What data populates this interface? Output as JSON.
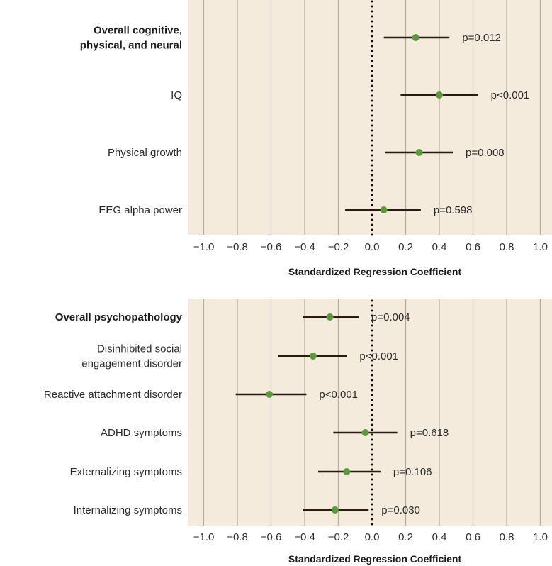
{
  "colors": {
    "plot_background": "#f5ebdc",
    "grid": "#b3aca2",
    "ci_line": "#2a1a14",
    "point": "#5a9a3c",
    "zero_line": "#111111"
  },
  "chart_data": [
    {
      "type": "forest",
      "xlabel": "Standardized Regression Coefficient",
      "xlim": [
        -1.1,
        1.08
      ],
      "xticks": [
        "−1.0",
        "−0.8",
        "−0.6",
        "−0.4",
        "−0.2",
        "0.0",
        "0.2",
        "0.4",
        "0.6",
        "0.8",
        "1.0"
      ],
      "grid": true,
      "reference_line": 0,
      "rows": [
        {
          "label": "Overall cognitive, physical, and neural",
          "label_lines": [
            "Overall cognitive,",
            "physical, and neural"
          ],
          "bold": true,
          "estimate": 0.26,
          "ci_low": 0.07,
          "ci_high": 0.46,
          "p": "p=0.012"
        },
        {
          "label": "IQ",
          "label_lines": [
            "IQ"
          ],
          "bold": false,
          "estimate": 0.4,
          "ci_low": 0.17,
          "ci_high": 0.63,
          "p": "p<0.001"
        },
        {
          "label": "Physical growth",
          "label_lines": [
            "Physical growth"
          ],
          "bold": false,
          "estimate": 0.28,
          "ci_low": 0.08,
          "ci_high": 0.48,
          "p": "p=0.008"
        },
        {
          "label": "EEG alpha power",
          "label_lines": [
            "EEG alpha power"
          ],
          "bold": false,
          "estimate": 0.07,
          "ci_low": -0.16,
          "ci_high": 0.29,
          "p": "p=0.598"
        }
      ]
    },
    {
      "type": "forest",
      "xlabel": "Standardized Regression Coefficient",
      "xlim": [
        -1.1,
        1.08
      ],
      "xticks": [
        "−1.0",
        "−0.8",
        "−0.6",
        "−0.4",
        "−0.2",
        "0.0",
        "0.2",
        "0.4",
        "0.6",
        "0.8",
        "1.0"
      ],
      "grid": true,
      "reference_line": 0,
      "rows": [
        {
          "label": "Overall psychopathology",
          "label_lines": [
            "Overall psychopathology"
          ],
          "bold": true,
          "estimate": -0.25,
          "ci_low": -0.41,
          "ci_high": -0.08,
          "p": "p=0.004"
        },
        {
          "label": "Disinhibited social engagement disorder",
          "label_lines": [
            "Disinhibited social",
            "engagement disorder"
          ],
          "bold": false,
          "estimate": -0.35,
          "ci_low": -0.56,
          "ci_high": -0.15,
          "p": "p<0.001"
        },
        {
          "label": "Reactive attachment disorder",
          "label_lines": [
            "Reactive attachment disorder"
          ],
          "bold": false,
          "estimate": -0.61,
          "ci_low": -0.81,
          "ci_high": -0.39,
          "p": "p<0.001"
        },
        {
          "label": "ADHD symptoms",
          "label_lines": [
            "ADHD symptoms"
          ],
          "bold": false,
          "estimate": -0.04,
          "ci_low": -0.23,
          "ci_high": 0.15,
          "p": "p=0.618"
        },
        {
          "label": "Externalizing symptoms",
          "label_lines": [
            "Externalizing symptoms"
          ],
          "bold": false,
          "estimate": -0.15,
          "ci_low": -0.32,
          "ci_high": 0.05,
          "p": "p=0.106"
        },
        {
          "label": "Internalizing symptoms",
          "label_lines": [
            "Internalizing symptoms"
          ],
          "bold": false,
          "estimate": -0.22,
          "ci_low": -0.41,
          "ci_high": -0.02,
          "p": "p=0.030"
        }
      ]
    }
  ]
}
